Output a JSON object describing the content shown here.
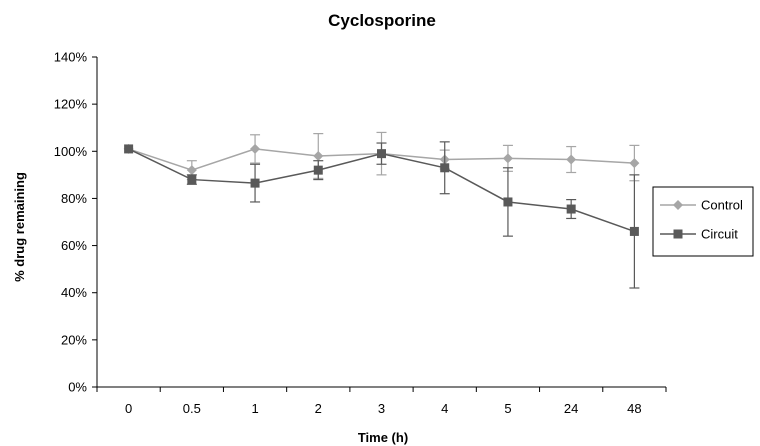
{
  "chart_data": {
    "type": "line",
    "title": "Cyclosporine",
    "xlabel": "Time (h)",
    "ylabel": "% drug remaining",
    "categories": [
      "0",
      "0.5",
      "1",
      "2",
      "3",
      "4",
      "5",
      "24",
      "48"
    ],
    "ylim": [
      0,
      140
    ],
    "yticks": [
      0,
      20,
      40,
      60,
      80,
      100,
      120,
      140
    ],
    "ytick_labels": [
      "0%",
      "20%",
      "40%",
      "60%",
      "80%",
      "100%",
      "120%",
      "140%"
    ],
    "grid": false,
    "legend_position": "right",
    "series": [
      {
        "name": "Control",
        "marker": "diamond",
        "color": "#a6a6a6",
        "values": [
          101,
          92,
          101,
          98,
          99,
          96.5,
          97,
          96.5,
          95
        ],
        "error": [
          0,
          4,
          6,
          9.5,
          9,
          4,
          5.5,
          5.5,
          7.5
        ]
      },
      {
        "name": "Circuit",
        "marker": "square",
        "color": "#595959",
        "values": [
          101,
          88,
          86.5,
          92,
          99,
          93,
          78.5,
          75.5,
          66
        ],
        "error": [
          0,
          2,
          8,
          4,
          4.5,
          11,
          14.5,
          4,
          24
        ]
      }
    ]
  }
}
